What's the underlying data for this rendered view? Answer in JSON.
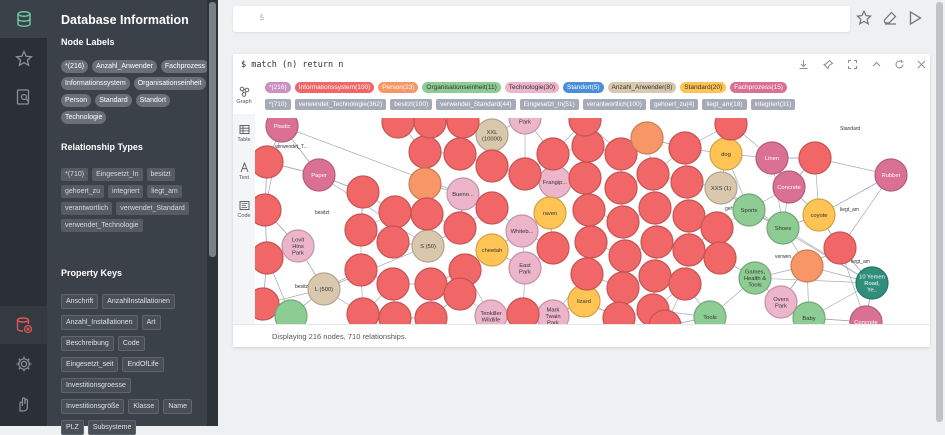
{
  "drawer": {
    "title": "Database Information",
    "node_labels_title": "Node Labels",
    "node_labels": [
      "*(216)",
      "Anzahl_Anwender",
      "Fachprozess",
      "Informationssystem",
      "Organisationseinheit",
      "Person",
      "Standard",
      "Standort",
      "Technologie"
    ],
    "relationship_types_title": "Relationship Types",
    "relationship_types": [
      "*(710)",
      "Eingesetzt_In",
      "besitzt",
      "gehoert_zu",
      "integriert",
      "liegt_am",
      "verantwortlich",
      "verwendet_Standard",
      "verwendet_Technologie"
    ],
    "property_keys_title": "Property Keys",
    "property_keys": [
      "Anschrift",
      "AnzahlInstallationen",
      "Anzahl_Installationen",
      "Art",
      "Beschreibung",
      "Code",
      "Eingesetzt_seit",
      "EndOfLife",
      "Investitionsgroesse",
      "Investitionsgröße",
      "Klasse",
      "Name",
      "PLZ",
      "Subsysteme"
    ]
  },
  "editor": {
    "prompt": "$"
  },
  "frame": {
    "query": "$ match (n) return n",
    "views": [
      "Graph",
      "Table",
      "Text",
      "Code"
    ],
    "status": "Displaying 216 nodes, 710 relationships."
  },
  "legend": {
    "labels": [
      {
        "text": "*(216)",
        "bg": "#c990c0",
        "fg": "#ffffff"
      },
      {
        "text": "Informationssystem(100)",
        "bg": "#f16667",
        "fg": "#ffffff"
      },
      {
        "text": "Person(23)",
        "bg": "#f79767",
        "fg": "#ffffff"
      },
      {
        "text": "Organisationseinheit(11)",
        "bg": "#8dcc93",
        "fg": "#333333"
      },
      {
        "text": "Technologie(30)",
        "bg": "#ecb5c9",
        "fg": "#333333"
      },
      {
        "text": "Standort(5)",
        "bg": "#4c8eda",
        "fg": "#ffffff"
      },
      {
        "text": "Anzahl_Anwender(8)",
        "bg": "#d9c8ae",
        "fg": "#333333"
      },
      {
        "text": "Standard(20)",
        "bg": "#ffc454",
        "fg": "#333333"
      },
      {
        "text": "Fachprozess(15)",
        "bg": "#da7194",
        "fg": "#ffffff"
      }
    ],
    "relationships": [
      "*(710)",
      "verwendet_Technologie(362)",
      "besitzt(100)",
      "verwendet_Standard(44)",
      "Eingesetzt_In(51)",
      "verantwortlich(100)",
      "gehoert_zu(4)",
      "liegt_am(18)",
      "integriert(31)"
    ]
  },
  "graph": {
    "nodes": [
      {
        "t": "Plastic",
        "c": "#da7194"
      },
      {
        "t": "Paper",
        "c": "#da7194"
      },
      {
        "t": "Lovit Hins Park",
        "c": "#ecb5c9"
      },
      {
        "t": "L (500)",
        "c": "#d9c8ae"
      },
      {
        "t": "XXL (10000)",
        "c": "#d9c8ae"
      },
      {
        "t": "Village Park",
        "c": "#ecb5c9"
      },
      {
        "t": "Bueno...",
        "c": "#ecb5c9"
      },
      {
        "t": "Frangip...",
        "c": "#ecb5c9"
      },
      {
        "t": "raven",
        "c": "#ffc454"
      },
      {
        "t": "Whiteb...",
        "c": "#ecb5c9"
      },
      {
        "t": "S (50)",
        "c": "#d9c8ae"
      },
      {
        "t": "cheetah",
        "c": "#ffc454"
      },
      {
        "t": "East Park",
        "c": "#ecb5c9"
      },
      {
        "t": "lizard",
        "c": "#ffc454"
      },
      {
        "t": "Tenkiller Wildlife",
        "c": "#ecb5c9"
      },
      {
        "t": "Mark Twain Park",
        "c": "#ecb5c9"
      },
      {
        "t": "dog",
        "c": "#ffc454"
      },
      {
        "t": "Linen",
        "c": "#da7194"
      },
      {
        "t": "XXS (1)",
        "c": "#d9c8ae"
      },
      {
        "t": "Concrete",
        "c": "#da7194"
      },
      {
        "t": "Sports",
        "c": "#8dcc93"
      },
      {
        "t": "coyote",
        "c": "#ffc454"
      },
      {
        "t": "Shoes",
        "c": "#8dcc93"
      },
      {
        "t": "Rubber",
        "c": "#da7194"
      },
      {
        "t": "Games, Health & Tools",
        "c": "#8dcc93"
      },
      {
        "t": "Overs Park",
        "c": "#ecb5c9"
      },
      {
        "t": "10 Yemen Road, Ye..",
        "c": "#2f8f7a"
      },
      {
        "t": "Tools",
        "c": "#8dcc93"
      },
      {
        "t": "Baby",
        "c": "#8dcc93"
      },
      {
        "t": "Concrete",
        "c": "#da7194"
      }
    ],
    "edge_labels": [
      "verwendet_T...",
      "Standard",
      "besitzt",
      "liegt_am",
      "liegt_am",
      "gehoert_zu",
      "verant...",
      "verwen...",
      "besitzt"
    ]
  }
}
